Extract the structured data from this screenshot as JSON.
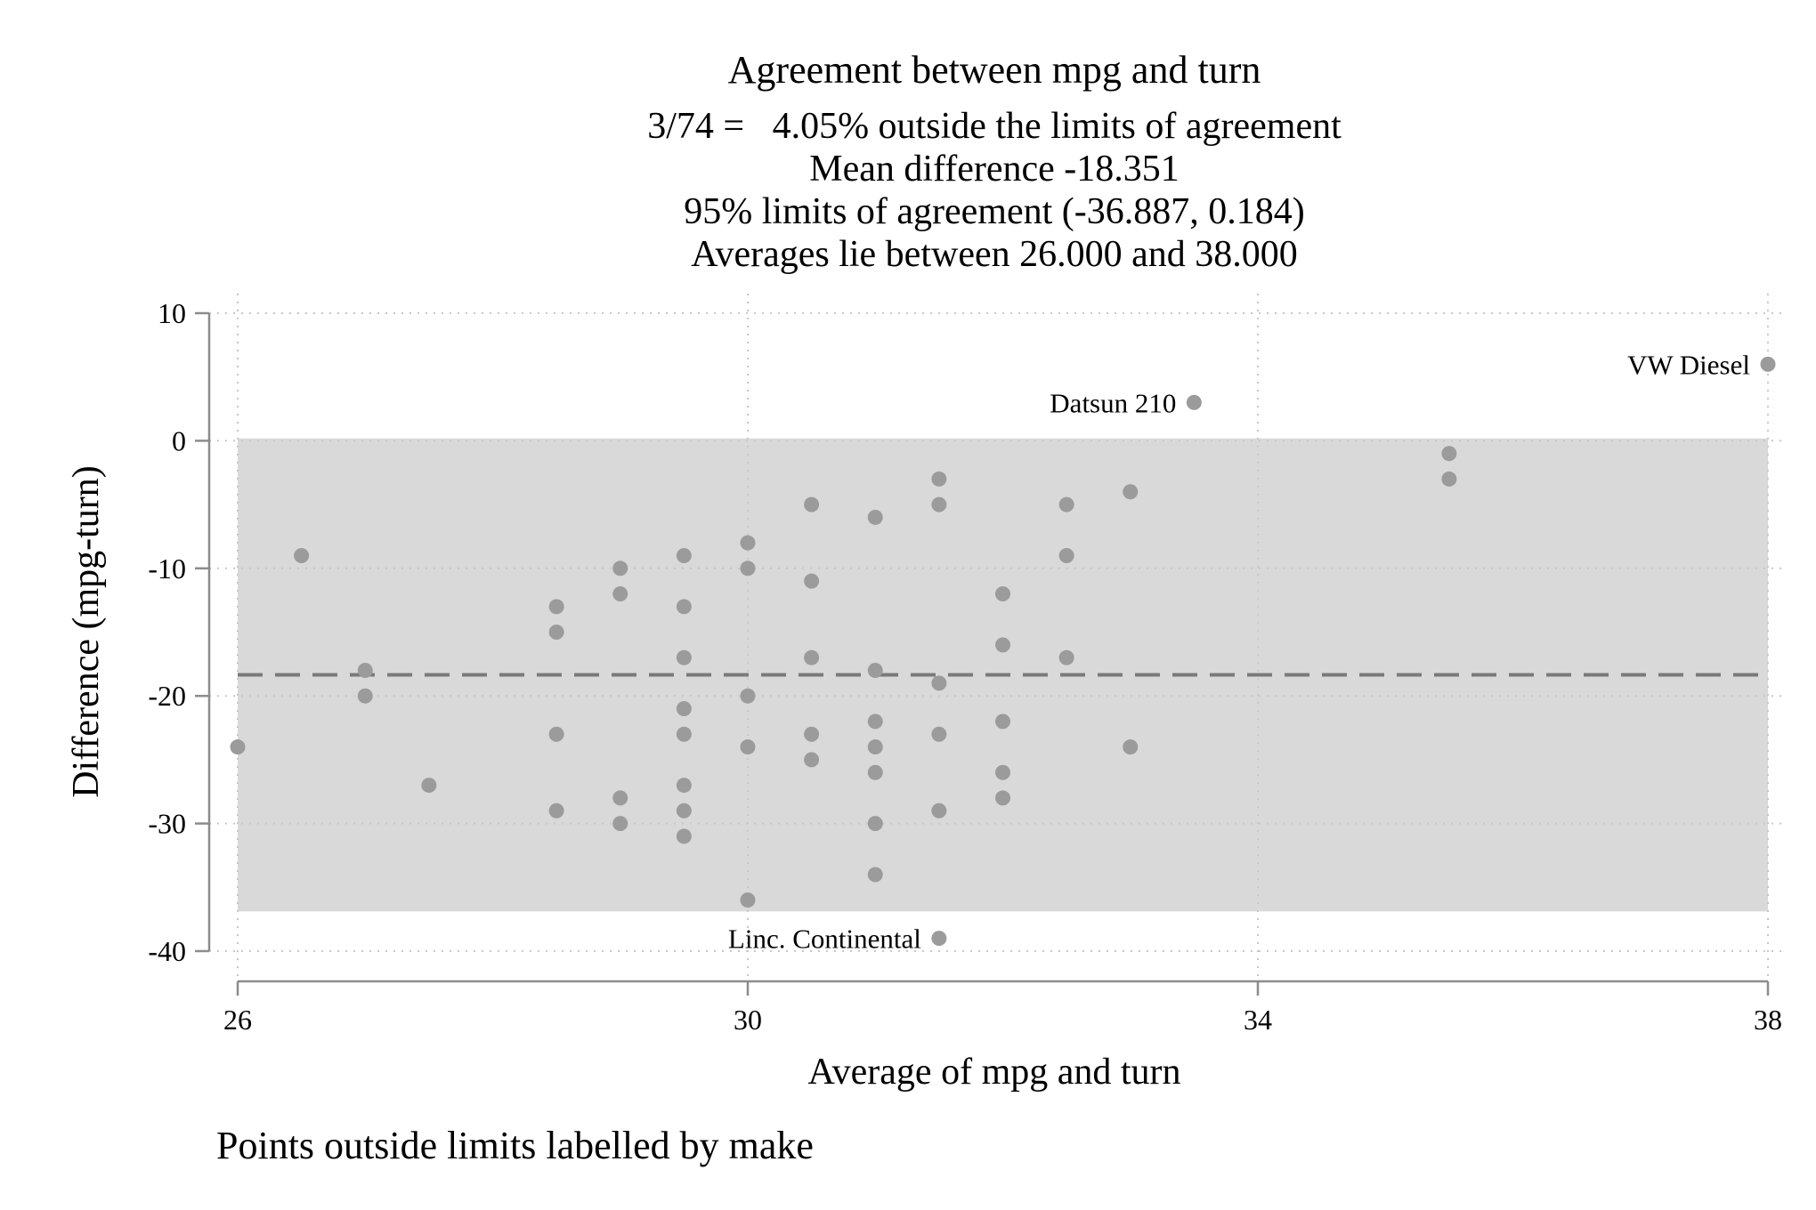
{
  "chart_data": {
    "type": "scatter",
    "title": "Agreement between mpg and turn",
    "subtitle_lines": [
      "3/74 =   4.05% outside the limits of agreement",
      "Mean difference -18.351",
      "95% limits of agreement (-36.887, 0.184)",
      "Averages lie between 26.000 and 38.000"
    ],
    "xlabel": "Average of mpg and turn",
    "ylabel": "Difference (mpg-turn)",
    "note": "Points outside limits labelled by make",
    "xlim": [
      26,
      38
    ],
    "ylim": [
      -40,
      10
    ],
    "xticks": [
      26,
      30,
      34,
      38
    ],
    "yticks": [
      10,
      0,
      -10,
      -20,
      -30,
      -40
    ],
    "grid": true,
    "mean_difference": -18.351,
    "limits_of_agreement": [
      -36.887,
      0.184
    ],
    "colors": {
      "points": "#9b9b9b",
      "band": "#d9d9d9",
      "mean_line": "#7a7a7a",
      "grid": "#c8c8c8",
      "axis": "#8c8c8c"
    },
    "points": [
      {
        "x": 26.0,
        "y": -24
      },
      {
        "x": 26.5,
        "y": -9
      },
      {
        "x": 27.0,
        "y": -18
      },
      {
        "x": 27.0,
        "y": -20
      },
      {
        "x": 27.5,
        "y": -27
      },
      {
        "x": 28.5,
        "y": -13
      },
      {
        "x": 28.5,
        "y": -15
      },
      {
        "x": 28.5,
        "y": -23
      },
      {
        "x": 28.5,
        "y": -29
      },
      {
        "x": 29.0,
        "y": -10
      },
      {
        "x": 29.0,
        "y": -12
      },
      {
        "x": 29.0,
        "y": -28
      },
      {
        "x": 29.0,
        "y": -30
      },
      {
        "x": 29.5,
        "y": -9
      },
      {
        "x": 29.5,
        "y": -13
      },
      {
        "x": 29.5,
        "y": -17
      },
      {
        "x": 29.5,
        "y": -21
      },
      {
        "x": 29.5,
        "y": -23
      },
      {
        "x": 29.5,
        "y": -27
      },
      {
        "x": 29.5,
        "y": -29
      },
      {
        "x": 29.5,
        "y": -31
      },
      {
        "x": 30.0,
        "y": -8
      },
      {
        "x": 30.0,
        "y": -10
      },
      {
        "x": 30.0,
        "y": -20
      },
      {
        "x": 30.0,
        "y": -24
      },
      {
        "x": 30.0,
        "y": -36
      },
      {
        "x": 30.5,
        "y": -5
      },
      {
        "x": 30.5,
        "y": -11
      },
      {
        "x": 30.5,
        "y": -17
      },
      {
        "x": 30.5,
        "y": -23
      },
      {
        "x": 30.5,
        "y": -25
      },
      {
        "x": 31.0,
        "y": -6
      },
      {
        "x": 31.0,
        "y": -18
      },
      {
        "x": 31.0,
        "y": -22
      },
      {
        "x": 31.0,
        "y": -24
      },
      {
        "x": 31.0,
        "y": -26
      },
      {
        "x": 31.0,
        "y": -30
      },
      {
        "x": 31.0,
        "y": -34
      },
      {
        "x": 31.5,
        "y": -3
      },
      {
        "x": 31.5,
        "y": -5
      },
      {
        "x": 31.5,
        "y": -19
      },
      {
        "x": 31.5,
        "y": -23
      },
      {
        "x": 31.5,
        "y": -29
      },
      {
        "x": 31.5,
        "y": -39,
        "label": "Linc. Continental"
      },
      {
        "x": 32.0,
        "y": -12
      },
      {
        "x": 32.0,
        "y": -16
      },
      {
        "x": 32.0,
        "y": -22
      },
      {
        "x": 32.0,
        "y": -26
      },
      {
        "x": 32.0,
        "y": -28
      },
      {
        "x": 32.5,
        "y": -5
      },
      {
        "x": 32.5,
        "y": -9
      },
      {
        "x": 32.5,
        "y": -17
      },
      {
        "x": 33.0,
        "y": -4
      },
      {
        "x": 33.0,
        "y": -24
      },
      {
        "x": 33.5,
        "y": 3,
        "label": "Datsun 210"
      },
      {
        "x": 35.5,
        "y": -1
      },
      {
        "x": 35.5,
        "y": -3
      },
      {
        "x": 38.0,
        "y": 6,
        "label": "VW Diesel"
      }
    ]
  }
}
